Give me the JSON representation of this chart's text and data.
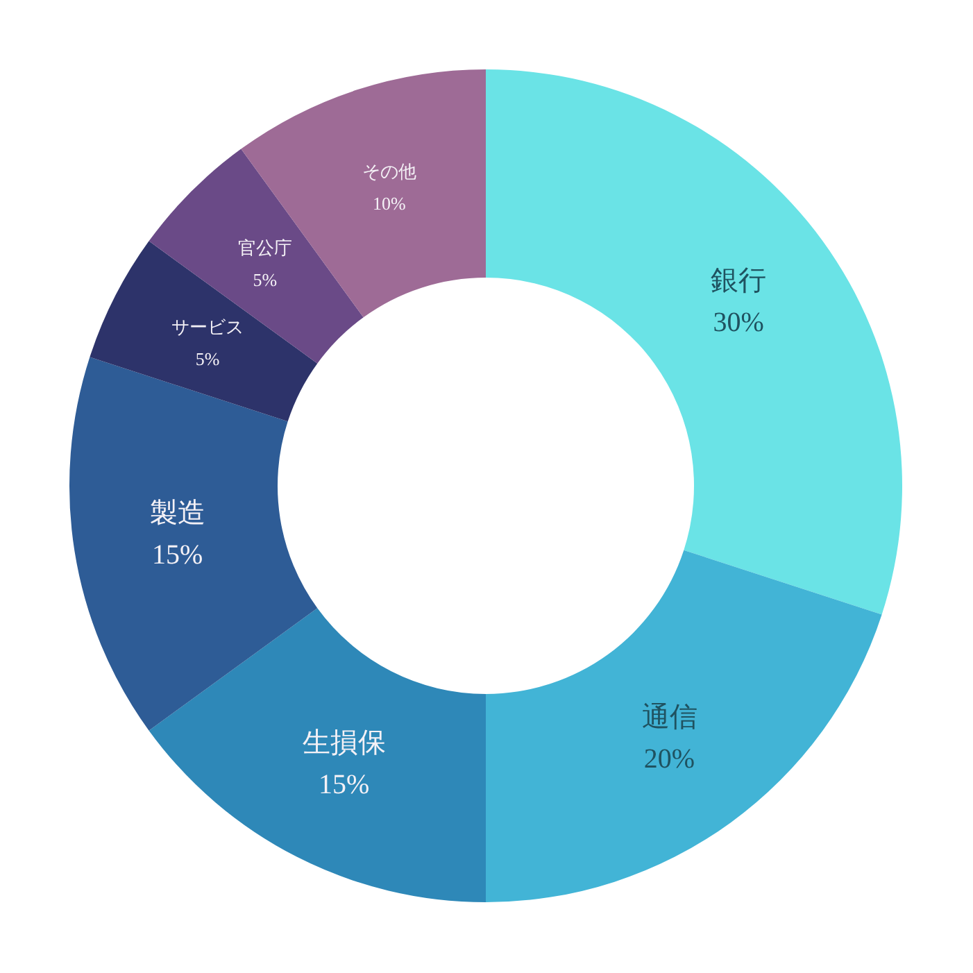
{
  "chart_data": {
    "type": "donut",
    "categories": [
      "銀行",
      "通信",
      "生損保",
      "製造",
      "サービス",
      "官公庁",
      "その他"
    ],
    "values": [
      30,
      20,
      15,
      15,
      5,
      5,
      10
    ],
    "value_labels": [
      "30%",
      "20%",
      "15%",
      "15%",
      "5%",
      "5%",
      "10%"
    ],
    "colors": [
      "#6ae3e6",
      "#42b4d6",
      "#2e88b8",
      "#2e5c96",
      "#2d336a",
      "#6a4a87",
      "#9e6b96"
    ]
  }
}
